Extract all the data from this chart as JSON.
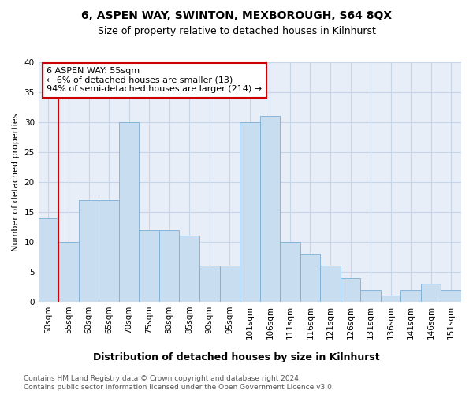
{
  "title": "6, ASPEN WAY, SWINTON, MEXBOROUGH, S64 8QX",
  "subtitle": "Size of property relative to detached houses in Kilnhurst",
  "xlabel_bottom": "Distribution of detached houses by size in Kilnhurst",
  "ylabel": "Number of detached properties",
  "bin_labels": [
    "50sqm",
    "55sqm",
    "60sqm",
    "65sqm",
    "70sqm",
    "75sqm",
    "80sqm",
    "85sqm",
    "90sqm",
    "95sqm",
    "101sqm",
    "106sqm",
    "111sqm",
    "116sqm",
    "121sqm",
    "126sqm",
    "131sqm",
    "136sqm",
    "141sqm",
    "146sqm",
    "151sqm"
  ],
  "bar_values": [
    14,
    10,
    17,
    17,
    30,
    12,
    12,
    11,
    6,
    6,
    30,
    31,
    10,
    8,
    6,
    4,
    2,
    1,
    2,
    3,
    2
  ],
  "bar_color": "#c9ddf0",
  "bar_edgecolor": "#7bafd4",
  "highlight_bar_index": 1,
  "vline_color": "#cc0000",
  "annotation_text": "6 ASPEN WAY: 55sqm\n← 6% of detached houses are smaller (13)\n94% of semi-detached houses are larger (214) →",
  "annotation_box_color": "#ffffff",
  "annotation_box_edgecolor": "#cc0000",
  "ylim": [
    0,
    40
  ],
  "yticks": [
    0,
    5,
    10,
    15,
    20,
    25,
    30,
    35,
    40
  ],
  "footer_line1": "Contains HM Land Registry data © Crown copyright and database right 2024.",
  "footer_line2": "Contains public sector information licensed under the Open Government Licence v3.0.",
  "bg_color": "#ffffff",
  "plot_bg_color": "#e8eef8",
  "grid_color": "#c8d4e8",
  "title_fontsize": 10,
  "subtitle_fontsize": 9,
  "xlabel_fontsize": 9,
  "ylabel_fontsize": 8,
  "tick_fontsize": 7.5,
  "annotation_fontsize": 8,
  "footer_fontsize": 6.5
}
